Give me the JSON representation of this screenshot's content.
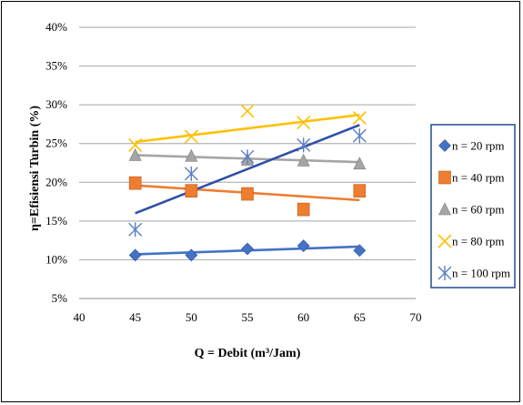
{
  "chart_data": {
    "type": "scatter",
    "xlabel": "Q = Debit (m³/Jam)",
    "ylabel": "η=Efisiensi Turbin (%)",
    "xlim": [
      40,
      70
    ],
    "ylim": [
      5,
      40
    ],
    "x_ticks": [
      "40",
      "45",
      "50",
      "55",
      "60",
      "65",
      "70"
    ],
    "y_ticks": [
      "5%",
      "10%",
      "15%",
      "20%",
      "25%",
      "30%",
      "35%",
      "40%"
    ],
    "grid": "horizontal",
    "legend_position": "right",
    "x": [
      45,
      50,
      55,
      60,
      65
    ],
    "series": [
      {
        "name": "n = 20 rpm",
        "marker": "diamond",
        "color": "#4472C4",
        "values": [
          10.6,
          10.6,
          11.4,
          11.8,
          11.2
        ],
        "trend": [
          10.7,
          11.7
        ]
      },
      {
        "name": "n = 40 rpm",
        "marker": "square",
        "color": "#ED7D31",
        "values": [
          19.9,
          18.9,
          18.5,
          16.5,
          18.9
        ],
        "trend": [
          19.6,
          17.7
        ]
      },
      {
        "name": "n = 60 rpm",
        "marker": "triangle",
        "color": "#A5A5A5",
        "values": [
          23.5,
          23.4,
          22.9,
          22.8,
          22.4
        ],
        "trend": [
          23.5,
          22.6
        ]
      },
      {
        "name": "n = 80 rpm",
        "marker": "x",
        "color": "#FFC000",
        "values": [
          24.8,
          25.9,
          29.2,
          27.7,
          28.3
        ],
        "trend": [
          25.2,
          28.7
        ]
      },
      {
        "name": "n = 100 rpm",
        "marker": "star",
        "color": "#5B7EC4",
        "values": [
          13.9,
          21.1,
          23.3,
          24.8,
          26.0
        ],
        "trend_color": "#2F4FA8",
        "trend": [
          16.0,
          27.4
        ]
      }
    ]
  }
}
